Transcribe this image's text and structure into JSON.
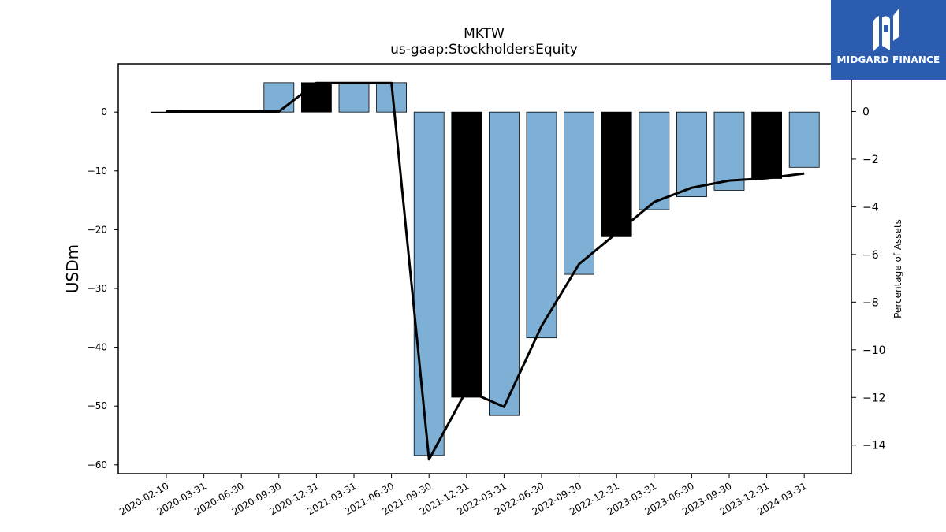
{
  "chart_data": {
    "type": "bar",
    "title": "MKTW",
    "subtitle": "us-gaap:StockholdersEquity",
    "ylabel": "USDm",
    "y2label": "Percentage of Assets",
    "categories": [
      "2020-02-10",
      "2020-03-31",
      "2020-06-30",
      "2020-09-30",
      "2020-12-31",
      "2021-03-31",
      "2021-06-30",
      "2021-09-30",
      "2021-12-31",
      "2022-03-31",
      "2022-06-30",
      "2022-09-30",
      "2022-12-31",
      "2023-03-31",
      "2023-06-30",
      "2023-09-30",
      "2023-12-31",
      "2024-03-31"
    ],
    "series": [
      {
        "kind": "bar",
        "axis": "left",
        "values": [
          0.0,
          null,
          null,
          5.0,
          5.0,
          5.0,
          5.0,
          -58.4,
          -48.5,
          -51.6,
          -38.4,
          -27.6,
          -21.2,
          -16.6,
          -14.4,
          -13.3,
          -11.3,
          -9.4
        ],
        "colors": [
          "#7eb0d5",
          "#7eb0d5",
          "#7eb0d5",
          "#7eb0d5",
          "#000000",
          "#7eb0d5",
          "#7eb0d5",
          "#7eb0d5",
          "#000000",
          "#7eb0d5",
          "#7eb0d5",
          "#7eb0d5",
          "#000000",
          "#7eb0d5",
          "#7eb0d5",
          "#7eb0d5",
          "#000000",
          "#7eb0d5"
        ]
      },
      {
        "kind": "line",
        "axis": "right",
        "values": [
          0.0,
          0.0,
          0.0,
          0.0,
          1.2,
          1.2,
          1.2,
          -14.6,
          -11.7,
          -12.4,
          -9.0,
          -6.4,
          -5.1,
          -3.8,
          -3.2,
          -2.9,
          -2.8,
          -2.6
        ],
        "color": "#000000"
      }
    ],
    "ylim": [
      -61.5,
      8.2
    ],
    "y2lim": [
      -15.2,
      2.0
    ],
    "yticks": [
      0,
      -10,
      -20,
      -30,
      -40,
      -50,
      -60
    ],
    "y2ticks": [
      0,
      -2,
      -4,
      -6,
      -8,
      -10,
      -12,
      -14
    ],
    "grid": false
  },
  "logo": {
    "text": "MIDGARD FINANCE",
    "color": "#2b5cb0"
  }
}
